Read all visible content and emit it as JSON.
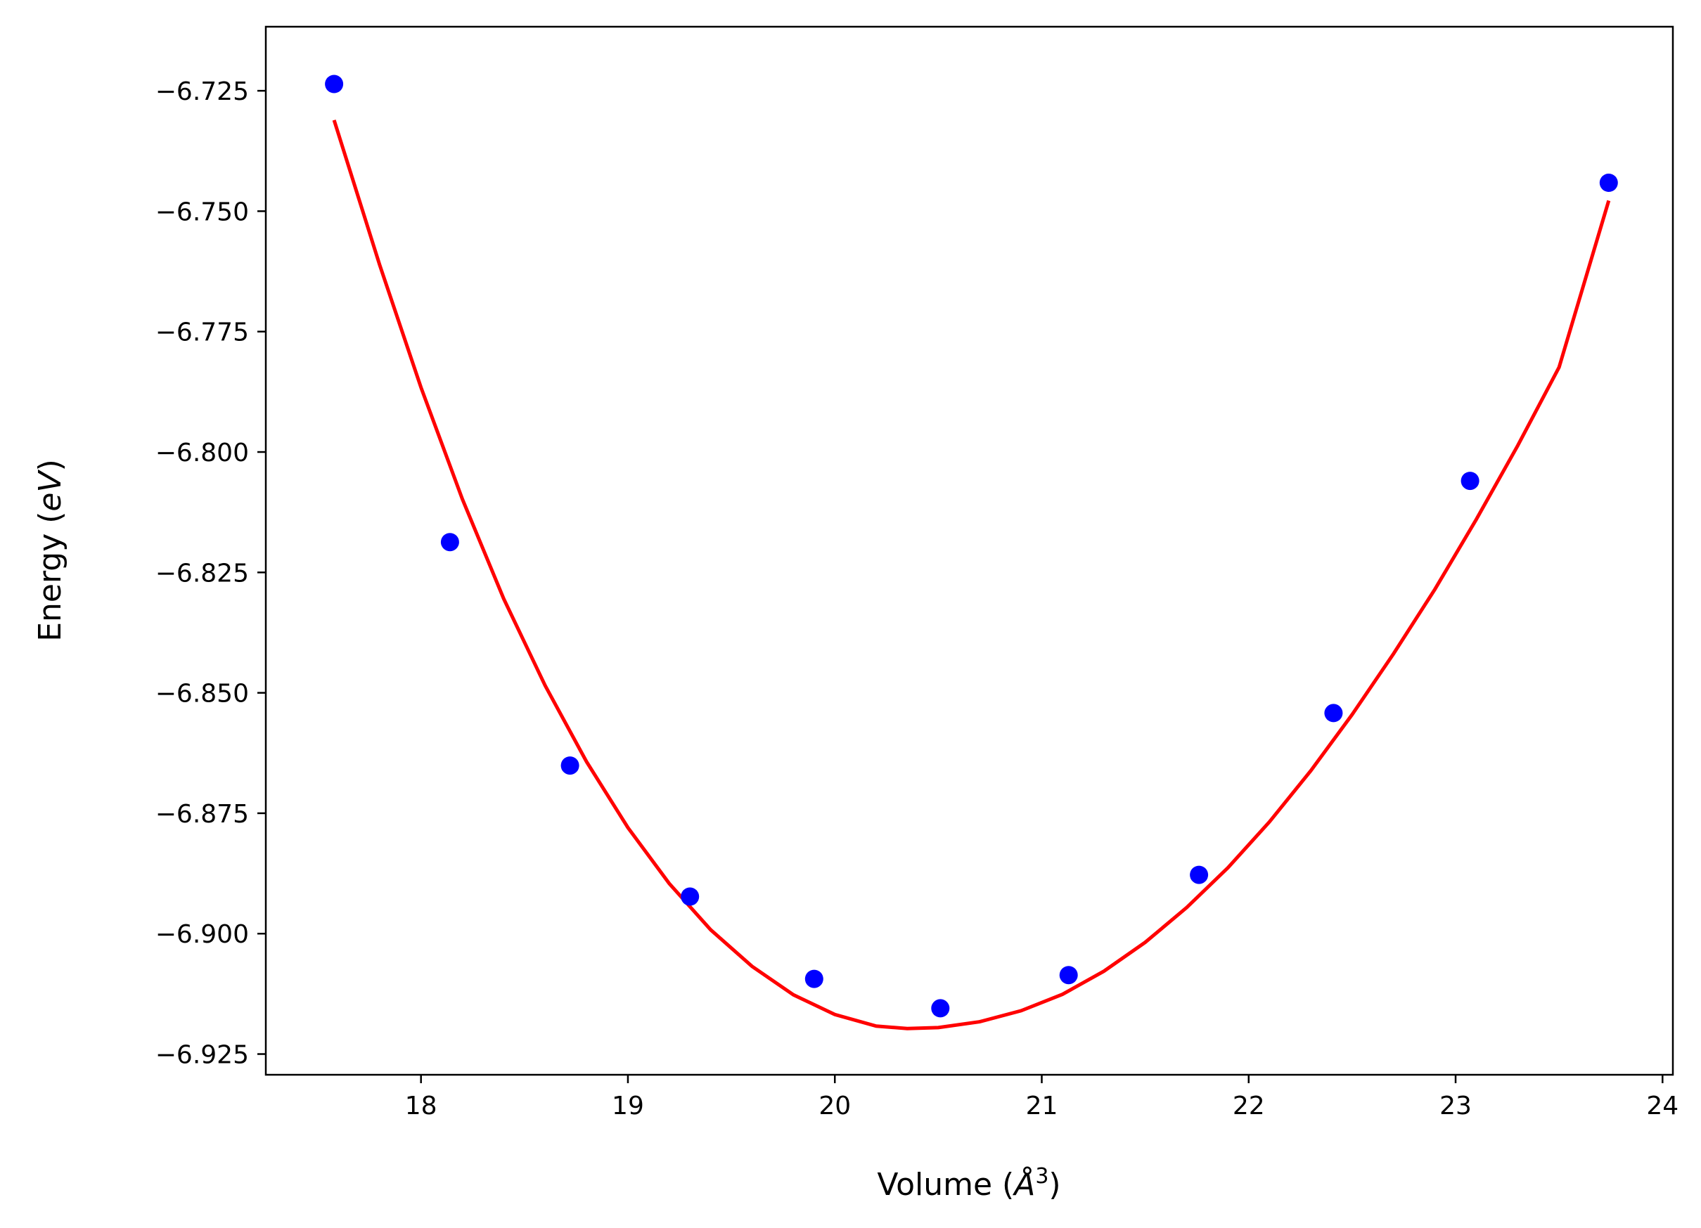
{
  "chart_data": {
    "type": "scatter",
    "xlabel": "Volume (",
    "xlabel_symbol": "Å",
    "xlabel_power": "3",
    "xlabel_close": ")",
    "ylabel": "Energy (",
    "ylabel_unit": "eV",
    "ylabel_close": ")",
    "xlim": [
      17.25,
      24.05
    ],
    "ylim": [
      -6.9293,
      -6.7117
    ],
    "xticks": [
      18,
      19,
      20,
      21,
      22,
      23,
      24
    ],
    "xtick_labels": [
      "18",
      "19",
      "20",
      "21",
      "22",
      "23",
      "24"
    ],
    "yticks": [
      -6.725,
      -6.75,
      -6.775,
      -6.8,
      -6.825,
      -6.85,
      -6.875,
      -6.9,
      -6.925
    ],
    "ytick_labels": [
      "−6.725",
      "−6.750",
      "−6.775",
      "−6.800",
      "−6.825",
      "−6.850",
      "−6.875",
      "−6.900",
      "−6.925"
    ],
    "grid": false,
    "series": [
      {
        "kind": "points",
        "color": "#0000ff",
        "x": [
          17.58,
          18.14,
          18.72,
          19.3,
          19.9,
          20.51,
          21.13,
          21.76,
          22.41,
          23.07,
          23.74
        ],
        "y": [
          -6.7236,
          -6.8187,
          -6.8651,
          -6.8923,
          -6.9094,
          -6.9155,
          -6.9086,
          -6.8878,
          -6.8542,
          -6.806,
          -6.7441
        ]
      },
      {
        "kind": "fit-line",
        "color": "#ff0000",
        "x": [
          17.58,
          17.8,
          18.0,
          18.2,
          18.4,
          18.6,
          18.8,
          19.0,
          19.2,
          19.4,
          19.6,
          19.8,
          20.0,
          20.2,
          20.35,
          20.5,
          20.7,
          20.9,
          21.1,
          21.3,
          21.5,
          21.7,
          21.9,
          22.1,
          22.3,
          22.5,
          22.7,
          22.9,
          23.1,
          23.3,
          23.5,
          23.74
        ],
        "y": [
          -6.7311,
          -6.7611,
          -6.7866,
          -6.8098,
          -6.8305,
          -6.8485,
          -6.8643,
          -6.878,
          -6.8896,
          -6.8992,
          -6.9068,
          -6.9127,
          -6.9168,
          -6.9192,
          -6.9197,
          -6.9195,
          -6.9183,
          -6.916,
          -6.9126,
          -6.9078,
          -6.9018,
          -6.8946,
          -6.8863,
          -6.8768,
          -6.8662,
          -6.8545,
          -6.8419,
          -6.8285,
          -6.814,
          -6.7987,
          -6.7824,
          -6.7478
        ]
      }
    ]
  }
}
